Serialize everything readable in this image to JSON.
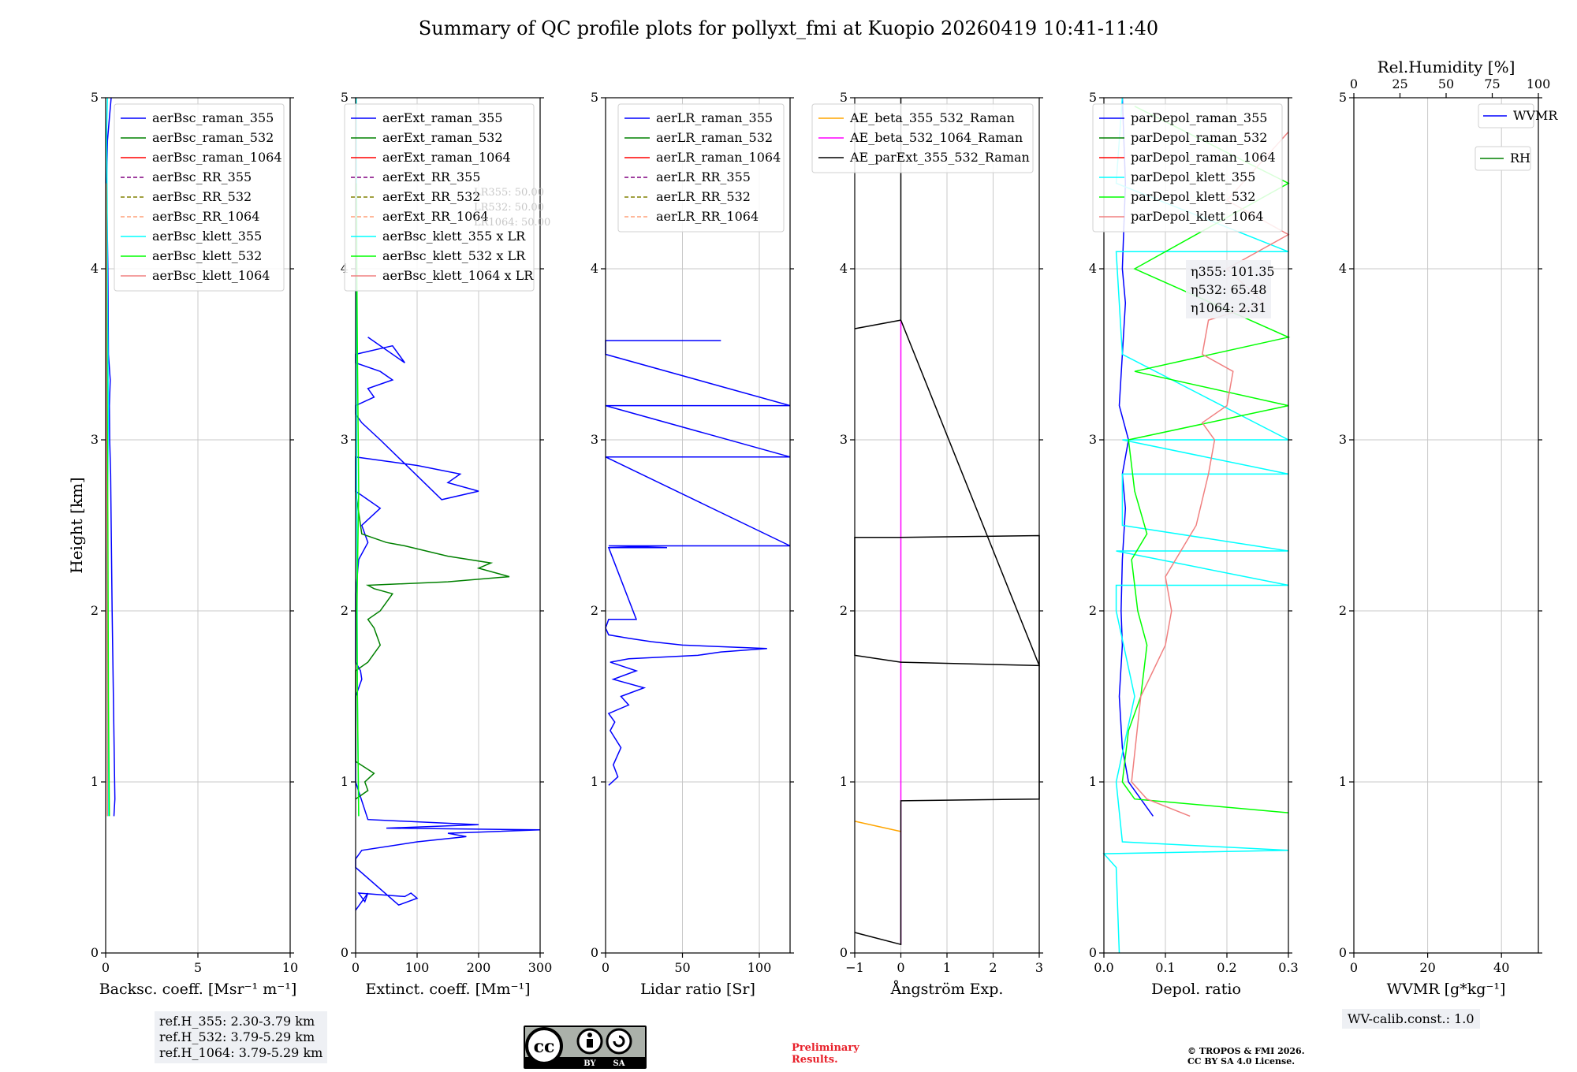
{
  "title": "Summary of QC profile plots for pollyxt_fmi at Kuopio 20260419 10:41-11:40",
  "chart_data": [
    {
      "type": "line",
      "id": "backscatter",
      "xlabel": "Backsc. coeff. [Msr⁻¹ m⁻¹]",
      "ylabel": "Height [km]",
      "xlim": [
        0,
        10
      ],
      "ylim": [
        0,
        5
      ],
      "xticks": [
        0,
        5,
        10
      ],
      "yticks": [
        0,
        1,
        2,
        3,
        4,
        5
      ],
      "grid": true,
      "legend": "top-right",
      "series": [
        {
          "name": "aerBsc_raman_355",
          "color": "#0000ff",
          "style": "solid",
          "x": [
            0.45,
            0.5,
            0.42,
            0.35,
            0.3,
            0.27,
            0.22,
            0.2,
            0.25,
            0.15,
            0.12,
            0.05,
            0.1,
            0.2,
            0.3
          ],
          "y": [
            0.8,
            0.9,
            1.5,
            2.0,
            2.5,
            2.8,
            3.0,
            3.2,
            3.35,
            3.5,
            4.0,
            4.5,
            4.75,
            4.88,
            5.0
          ]
        },
        {
          "name": "aerBsc_raman_532",
          "color": "#008000",
          "style": "solid",
          "x": [],
          "y": []
        },
        {
          "name": "aerBsc_raman_1064",
          "color": "#ff0000",
          "style": "solid",
          "x": [],
          "y": []
        },
        {
          "name": "aerBsc_RR_355",
          "color": "#800080",
          "style": "dashed",
          "x": [],
          "y": []
        },
        {
          "name": "aerBsc_RR_532",
          "color": "#808000",
          "style": "dashed",
          "x": [],
          "y": []
        },
        {
          "name": "aerBsc_RR_1064",
          "color": "#ffa07a",
          "style": "dashed",
          "x": [],
          "y": []
        },
        {
          "name": "aerBsc_klett_355",
          "color": "#00ffff",
          "style": "solid",
          "x": [
            0.15,
            0.12,
            0.1,
            0.05,
            0.12,
            0.15,
            0.1,
            0.08,
            0.05,
            0.1
          ],
          "y": [
            0.8,
            1.2,
            1.8,
            2.3,
            2.8,
            3.2,
            3.8,
            4.4,
            4.8,
            5.0
          ]
        },
        {
          "name": "aerBsc_klett_532",
          "color": "#00ff00",
          "style": "solid",
          "x": [
            0.2,
            0.15,
            0.12,
            0.08,
            0.05,
            0.04
          ],
          "y": [
            0.8,
            1.5,
            2.5,
            3.3,
            4.0,
            4.5
          ]
        },
        {
          "name": "aerBsc_klett_1064",
          "color": "#f08080",
          "style": "solid",
          "x": [
            0.1,
            0.08,
            0.06,
            0.04,
            0.03
          ],
          "y": [
            0.8,
            1.5,
            2.5,
            3.5,
            4.5
          ]
        }
      ]
    },
    {
      "type": "line",
      "id": "extinction",
      "xlabel": "Extinct. coeff. [Mm⁻¹]",
      "xlim": [
        0,
        300
      ],
      "ylim": [
        0,
        5
      ],
      "xticks": [
        0,
        100,
        200,
        300
      ],
      "yticks": [
        0,
        1,
        2,
        3,
        4,
        5
      ],
      "grid": true,
      "legend": "top-right",
      "faint_annotations": [
        "LR355: 50.00",
        "LR532: 50.00",
        "LR1064: 50.00"
      ],
      "series": [
        {
          "name": "aerExt_raman_355",
          "color": "#0000ff",
          "style": "solid",
          "x": [
            0,
            10,
            20,
            15,
            5,
            80,
            90,
            100,
            70,
            0,
            0,
            10,
            100,
            180,
            150,
            300,
            50,
            200,
            20,
            0,
            0,
            0,
            5,
            10,
            8,
            0,
            0,
            5,
            20,
            10,
            40,
            0,
            0,
            100,
            170,
            150,
            200,
            140,
            40,
            10,
            0,
            0,
            30,
            20,
            60,
            40,
            0,
            0,
            60,
            70,
            80,
            20
          ],
          "y": [
            0.25,
            0.3,
            0.35,
            0.3,
            0.35,
            0.33,
            0.35,
            0.32,
            0.28,
            0.5,
            0.55,
            0.6,
            0.65,
            0.68,
            0.7,
            0.72,
            0.73,
            0.75,
            0.78,
            1.0,
            1.4,
            1.5,
            1.55,
            1.6,
            1.65,
            1.7,
            2.1,
            2.3,
            2.4,
            2.5,
            2.6,
            2.7,
            2.9,
            2.85,
            2.8,
            2.75,
            2.7,
            2.65,
            3.0,
            3.1,
            3.15,
            3.2,
            3.25,
            3.3,
            3.35,
            3.4,
            3.45,
            3.5,
            3.55,
            3.5,
            3.45,
            3.6
          ]
        },
        {
          "name": "aerExt_raman_532",
          "color": "#008000",
          "style": "solid",
          "x": [
            0,
            20,
            15,
            30,
            0,
            0,
            20,
            40,
            30,
            20,
            40,
            60,
            30,
            20,
            150,
            250,
            200,
            220,
            150,
            80,
            50,
            10,
            0
          ],
          "y": [
            0.9,
            0.95,
            1.0,
            1.05,
            1.12,
            1.65,
            1.7,
            1.8,
            1.9,
            1.95,
            2.0,
            2.1,
            2.13,
            2.15,
            2.17,
            2.2,
            2.25,
            2.28,
            2.32,
            2.38,
            2.4,
            2.45,
            2.7
          ]
        },
        {
          "name": "aerExt_raman_1064",
          "color": "#ff0000",
          "style": "solid",
          "x": [],
          "y": []
        },
        {
          "name": "aerExt_RR_355",
          "color": "#800080",
          "style": "dashed",
          "x": [],
          "y": []
        },
        {
          "name": "aerExt_RR_532",
          "color": "#808000",
          "style": "dashed",
          "x": [],
          "y": []
        },
        {
          "name": "aerExt_RR_1064",
          "color": "#ffa07a",
          "style": "dashed",
          "x": [],
          "y": []
        },
        {
          "name": "aerBsc_klett_355 x LR",
          "color": "#00ffff",
          "style": "solid",
          "x": [
            5,
            3,
            2,
            1,
            2,
            1
          ],
          "y": [
            0.8,
            1.5,
            2.5,
            3.5,
            4.2,
            5.0
          ]
        },
        {
          "name": "aerBsc_klett_532 x LR",
          "color": "#00ff00",
          "style": "solid",
          "x": [
            5,
            3,
            2,
            5,
            3,
            1
          ],
          "y": [
            0.8,
            1.5,
            2.0,
            2.7,
            3.5,
            4.5
          ]
        },
        {
          "name": "aerBsc_klett_1064 x LR",
          "color": "#f08080",
          "style": "solid",
          "x": [],
          "y": []
        }
      ]
    },
    {
      "type": "line",
      "id": "lidar_ratio",
      "xlabel": "Lidar ratio [Sr]",
      "xlim": [
        0,
        120
      ],
      "ylim": [
        0,
        5
      ],
      "xticks": [
        0,
        50,
        100
      ],
      "yticks": [
        0,
        1,
        2,
        3,
        4,
        5
      ],
      "grid": true,
      "legend": "top-right",
      "series": [
        {
          "name": "aerLR_raman_355",
          "color": "#0000ff",
          "style": "solid",
          "x": [
            2,
            8,
            5,
            10,
            3,
            6,
            2,
            15,
            10,
            25,
            5,
            20,
            3,
            15,
            60,
            75,
            105,
            50,
            30,
            15,
            2,
            0,
            2,
            20,
            2,
            40,
            2,
            120,
            0,
            2,
            120,
            0,
            2,
            120,
            0,
            0,
            2,
            75
          ],
          "y": [
            0.98,
            1.03,
            1.1,
            1.2,
            1.3,
            1.35,
            1.4,
            1.45,
            1.5,
            1.55,
            1.6,
            1.65,
            1.7,
            1.72,
            1.74,
            1.76,
            1.78,
            1.8,
            1.82,
            1.84,
            1.86,
            1.9,
            1.95,
            1.95,
            2.37,
            2.37,
            2.38,
            2.38,
            2.9,
            2.9,
            2.9,
            3.2,
            3.2,
            3.2,
            3.5,
            3.58,
            3.58,
            3.58
          ]
        },
        {
          "name": "aerLR_raman_532",
          "color": "#008000",
          "style": "solid",
          "x": [],
          "y": []
        },
        {
          "name": "aerLR_raman_1064",
          "color": "#ff0000",
          "style": "solid",
          "x": [],
          "y": []
        },
        {
          "name": "aerLR_RR_355",
          "color": "#800080",
          "style": "dashed",
          "x": [],
          "y": []
        },
        {
          "name": "aerLR_RR_532",
          "color": "#808000",
          "style": "dashed",
          "x": [],
          "y": []
        },
        {
          "name": "aerLR_RR_1064",
          "color": "#ffa07a",
          "style": "dashed",
          "x": [],
          "y": []
        }
      ]
    },
    {
      "type": "line",
      "id": "angstrom",
      "xlabel": "Ångström Exp.",
      "xlim": [
        -1,
        3
      ],
      "ylim": [
        0,
        5
      ],
      "xticks": [
        -1,
        0,
        1,
        2,
        3
      ],
      "yticks": [
        0,
        1,
        2,
        3,
        4,
        5
      ],
      "grid": true,
      "legend": "top-right",
      "series": [
        {
          "name": "AE_beta_355_532_Raman",
          "color": "#ffa500",
          "style": "solid",
          "x": [
            -1,
            0
          ],
          "y": [
            0.77,
            0.71
          ]
        },
        {
          "name": "AE_beta_532_1064_Raman",
          "color": "#ff00ff",
          "style": "solid",
          "x": [
            0,
            0
          ],
          "y": [
            0.05,
            3.7
          ]
        },
        {
          "name": "AE_parExt_355_532_Raman",
          "color": "#000000",
          "style": "solid",
          "x": [
            -1,
            0,
            0,
            3,
            3,
            0,
            -1,
            -1,
            0,
            3,
            3,
            0,
            -1,
            -1,
            0,
            0,
            0
          ],
          "y": [
            0.12,
            0.05,
            0.89,
            0.9,
            2.44,
            2.43,
            2.43,
            1.74,
            1.7,
            1.68,
            1.68,
            3.7,
            3.65,
            3.65,
            3.7,
            4.5,
            5.0
          ]
        }
      ]
    },
    {
      "type": "line",
      "id": "depol",
      "xlabel": "Depol. ratio",
      "xlim": [
        0,
        0.3
      ],
      "ylim": [
        0,
        5
      ],
      "xticks": [
        0.0,
        0.1,
        0.2,
        0.3
      ],
      "yticks": [
        0,
        1,
        2,
        3,
        4,
        5
      ],
      "grid": true,
      "legend": "top-right",
      "annotation": [
        "η355: 101.35",
        "η532: 65.48",
        "η1064: 2.31"
      ],
      "series": [
        {
          "name": "parDepol_raman_355",
          "color": "#0000ff",
          "style": "solid",
          "x": [
            0.08,
            0.06,
            0.04,
            0.03,
            0.025,
            0.03,
            0.028,
            0.03,
            0.035,
            0.03,
            0.04,
            0.025,
            0.03,
            0.035,
            0.03,
            0.035,
            0.03
          ],
          "y": [
            0.8,
            0.9,
            1.0,
            1.2,
            1.5,
            1.8,
            2.0,
            2.3,
            2.6,
            2.8,
            3.0,
            3.2,
            3.5,
            3.8,
            4.0,
            4.5,
            5.0
          ]
        },
        {
          "name": "parDepol_raman_532",
          "color": "#008000",
          "style": "solid",
          "x": [],
          "y": []
        },
        {
          "name": "parDepol_raman_1064",
          "color": "#ff0000",
          "style": "solid",
          "x": [],
          "y": []
        },
        {
          "name": "parDepol_klett_355",
          "color": "#00ffff",
          "style": "solid",
          "x": [
            0.025,
            0.02,
            0.0,
            0.3,
            0.03,
            0.02,
            0.05,
            0.02,
            0.02,
            0.3,
            0.02,
            0.3,
            0.03,
            0.03,
            0.3,
            0.03,
            0.03,
            0.3,
            0.03,
            0.02,
            0.3,
            0.02,
            0.03
          ],
          "y": [
            0.0,
            0.5,
            0.58,
            0.6,
            0.65,
            1.0,
            1.5,
            2.0,
            2.15,
            2.15,
            2.35,
            2.35,
            2.5,
            2.8,
            2.8,
            3.0,
            3.0,
            3.0,
            3.5,
            4.1,
            4.1,
            4.5,
            5.0
          ]
        },
        {
          "name": "parDepol_klett_532",
          "color": "#00ff00",
          "style": "solid",
          "x": [
            0.3,
            0.05,
            0.03,
            0.04,
            0.06,
            0.07,
            0.055,
            0.045,
            0.07,
            0.05,
            0.04,
            0.3,
            0.05,
            0.3,
            0.05,
            0.3,
            0.05
          ],
          "y": [
            0.82,
            0.9,
            1.0,
            1.3,
            1.5,
            1.8,
            2.0,
            2.3,
            2.45,
            2.7,
            3.0,
            3.2,
            3.4,
            3.6,
            4.0,
            4.5,
            4.95
          ]
        },
        {
          "name": "parDepol_klett_1064",
          "color": "#f08080",
          "style": "solid",
          "x": [
            0.14,
            0.07,
            0.045,
            0.06,
            0.1,
            0.11,
            0.1,
            0.15,
            0.17,
            0.18,
            0.16,
            0.2,
            0.21,
            0.16,
            0.17,
            0.26,
            0.2,
            0.3,
            0.2,
            0.3
          ],
          "y": [
            0.8,
            0.9,
            1.0,
            1.5,
            1.8,
            2.0,
            2.2,
            2.5,
            2.8,
            3.0,
            3.1,
            3.2,
            3.4,
            3.5,
            3.7,
            3.8,
            4.0,
            4.2,
            4.4,
            4.8
          ]
        }
      ]
    },
    {
      "type": "line",
      "id": "wvmr",
      "xlabel": "WVMR [g*kg⁻¹]",
      "xlim": [
        0,
        50
      ],
      "ylim": [
        0,
        5
      ],
      "xticks": [
        0,
        20,
        40
      ],
      "yticks": [
        0,
        1,
        2,
        3,
        4,
        5
      ],
      "x2label": "Rel.Humidity [%]",
      "x2ticks": [
        0,
        25,
        50,
        75,
        100
      ],
      "grid": true,
      "legend": "top-right",
      "series": [
        {
          "name": "WVMR",
          "color": "#0000ff",
          "style": "solid",
          "x": [],
          "y": []
        },
        {
          "name": "RH",
          "color": "#008000",
          "style": "solid",
          "x": [],
          "y": []
        }
      ]
    }
  ],
  "ref_heights": [
    "ref.H_355: 2.30-3.79 km",
    "ref.H_532: 3.79-5.29 km",
    "ref.H_1064: 3.79-5.29 km"
  ],
  "wv_calib": "WV-calib.const.: 1.0",
  "cc_badge": {
    "by": "BY",
    "sa": "SA"
  },
  "preliminary": [
    "Preliminary",
    "Results."
  ],
  "copyright": [
    "© TROPOS & FMI 2026.",
    "CC BY SA 4.0 License."
  ]
}
